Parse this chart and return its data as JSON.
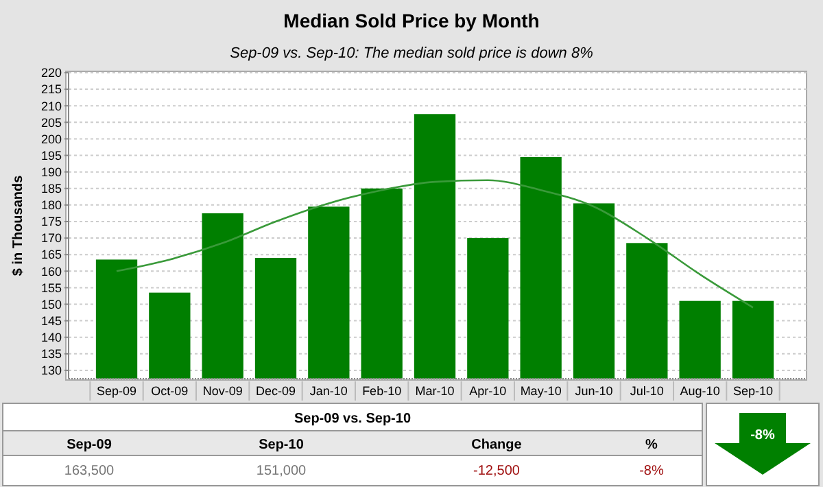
{
  "chart_data": {
    "type": "bar",
    "title": "Median Sold Price by Month",
    "subtitle": "Sep-09 vs. Sep-10: The median sold price is down 8%",
    "ylabel": "$ in Thousands",
    "categories": [
      "Sep-09",
      "Oct-09",
      "Nov-09",
      "Dec-09",
      "Jan-10",
      "Feb-10",
      "Mar-10",
      "Apr-10",
      "May-10",
      "Jun-10",
      "Jul-10",
      "Aug-10",
      "Sep-10"
    ],
    "series": [
      {
        "color": "#007f00",
        "values": [
          163.5,
          153.5,
          177.5,
          164,
          179.5,
          185,
          207.5,
          170,
          194.5,
          180.5,
          168.5,
          151,
          151
        ]
      },
      {
        "type": "line",
        "color": "#3a9a3a",
        "values": [
          160,
          163.5,
          168.5,
          175,
          180.5,
          184.5,
          187,
          187.5,
          184.5,
          179.5,
          170,
          159,
          149
        ]
      }
    ],
    "ylim": [
      127.5,
      220
    ],
    "yticks": [
      130,
      135,
      140,
      145,
      150,
      155,
      160,
      165,
      170,
      175,
      180,
      185,
      190,
      195,
      200,
      205,
      210,
      215,
      220
    ],
    "grid": "y",
    "line_style": "solid",
    "marker": "none",
    "annotations": [
      "Sep-09 vs. Sep-10",
      "Sep-09",
      "Sep-10",
      "Change",
      "%",
      "163,500",
      "151,000",
      "-12,500",
      "-8%",
      "-8%"
    ]
  }
}
